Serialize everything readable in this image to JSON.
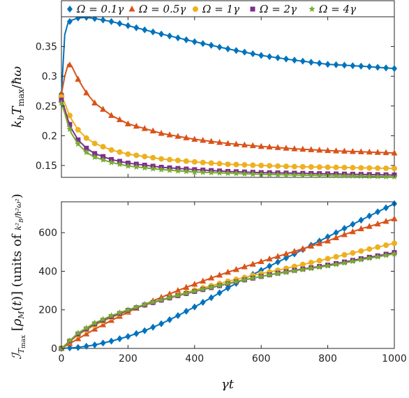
{
  "chart_data": [
    {
      "type": "line",
      "panel": "top",
      "ylabel": "k_b T_max / ħω",
      "xlabel": "",
      "xlim": [
        0,
        1000
      ],
      "ylim": [
        0.13,
        0.4
      ],
      "yticks": [
        0.15,
        0.2,
        0.25,
        0.3,
        0.35
      ],
      "ytick_labels": [
        "0.15",
        "0.2",
        "0.25",
        "0.3",
        "0.35"
      ],
      "grid": false,
      "legend": "top, horizontal",
      "series": [
        {
          "name": "Ω = 0.1γ",
          "color": "#0072BD",
          "marker": "diamond",
          "x": [
            0,
            10,
            20,
            30,
            50,
            75,
            100,
            150,
            200,
            300,
            400,
            500,
            600,
            700,
            800,
            900,
            1000
          ],
          "y": [
            0.27,
            0.37,
            0.39,
            0.394,
            0.398,
            0.399,
            0.397,
            0.392,
            0.385,
            0.371,
            0.358,
            0.346,
            0.335,
            0.327,
            0.32,
            0.317,
            0.313
          ]
        },
        {
          "name": "Ω = 0.5γ",
          "color": "#D95319",
          "marker": "triangle",
          "x": [
            0,
            10,
            20,
            30,
            50,
            75,
            100,
            150,
            200,
            300,
            400,
            500,
            600,
            700,
            800,
            900,
            1000
          ],
          "y": [
            0.27,
            0.3,
            0.32,
            0.318,
            0.295,
            0.272,
            0.255,
            0.234,
            0.22,
            0.204,
            0.194,
            0.187,
            0.182,
            0.178,
            0.175,
            0.173,
            0.171
          ]
        },
        {
          "name": "Ω = 1γ",
          "color": "#EDB120",
          "marker": "circle",
          "x": [
            0,
            10,
            20,
            30,
            50,
            75,
            100,
            150,
            200,
            300,
            400,
            500,
            600,
            700,
            800,
            900,
            1000
          ],
          "y": [
            0.265,
            0.255,
            0.24,
            0.228,
            0.21,
            0.196,
            0.187,
            0.176,
            0.169,
            0.161,
            0.156,
            0.152,
            0.15,
            0.148,
            0.147,
            0.146,
            0.145
          ]
        },
        {
          "name": "Ω = 2γ",
          "color": "#7E2F8E",
          "marker": "square",
          "x": [
            0,
            10,
            20,
            30,
            50,
            75,
            100,
            150,
            200,
            300,
            400,
            500,
            600,
            700,
            800,
            900,
            1000
          ],
          "y": [
            0.26,
            0.245,
            0.226,
            0.212,
            0.193,
            0.179,
            0.17,
            0.16,
            0.154,
            0.147,
            0.143,
            0.14,
            0.138,
            0.137,
            0.136,
            0.135,
            0.134
          ]
        },
        {
          "name": "Ω = 4γ",
          "color": "#77AC30",
          "marker": "star",
          "x": [
            0,
            10,
            20,
            30,
            50,
            75,
            100,
            150,
            200,
            300,
            400,
            500,
            600,
            700,
            800,
            900,
            1000
          ],
          "y": [
            0.255,
            0.238,
            0.218,
            0.204,
            0.186,
            0.172,
            0.164,
            0.155,
            0.149,
            0.143,
            0.139,
            0.137,
            0.135,
            0.134,
            0.133,
            0.132,
            0.131
          ]
        }
      ]
    },
    {
      "type": "line",
      "panel": "bottom",
      "ylabel": "I_Tmax [ρ_M(t)]  (units of k_B²/ħ²ω²)",
      "xlabel": "γt",
      "xlim": [
        0,
        1000
      ],
      "ylim": [
        0,
        760
      ],
      "xticks": [
        0,
        200,
        400,
        600,
        800,
        1000
      ],
      "xtick_labels": [
        "0",
        "200",
        "400",
        "600",
        "800",
        "1000"
      ],
      "yticks": [
        0,
        200,
        400,
        600
      ],
      "ytick_labels": [
        "0",
        "200",
        "400",
        "600"
      ],
      "grid": false,
      "series": [
        {
          "name": "Ω = 0.1γ",
          "color": "#0072BD",
          "marker": "diamond",
          "x": [
            0,
            50,
            100,
            150,
            200,
            250,
            300,
            350,
            400,
            450,
            500,
            550,
            600,
            650,
            700,
            750,
            800,
            850,
            900,
            950,
            1000
          ],
          "y": [
            0,
            5,
            18,
            38,
            62,
            92,
            128,
            170,
            215,
            263,
            313,
            362,
            405,
            448,
            490,
            535,
            578,
            622,
            665,
            708,
            750
          ]
        },
        {
          "name": "Ω = 0.5γ",
          "color": "#D95319",
          "marker": "triangle",
          "x": [
            0,
            50,
            100,
            150,
            200,
            250,
            300,
            350,
            400,
            450,
            500,
            550,
            600,
            650,
            700,
            750,
            800,
            850,
            900,
            950,
            1000
          ],
          "y": [
            0,
            50,
            100,
            145,
            188,
            228,
            265,
            300,
            333,
            365,
            395,
            423,
            450,
            477,
            503,
            530,
            557,
            590,
            620,
            645,
            672
          ]
        },
        {
          "name": "Ω = 1γ",
          "color": "#EDB120",
          "marker": "circle",
          "x": [
            0,
            50,
            100,
            150,
            200,
            250,
            300,
            350,
            400,
            450,
            500,
            550,
            600,
            650,
            700,
            750,
            800,
            850,
            900,
            950,
            1000
          ],
          "y": [
            0,
            70,
            120,
            160,
            195,
            225,
            252,
            278,
            302,
            325,
            348,
            368,
            388,
            405,
            425,
            445,
            465,
            485,
            505,
            525,
            545
          ]
        },
        {
          "name": "Ω = 2γ",
          "color": "#7E2F8E",
          "marker": "square",
          "x": [
            0,
            50,
            100,
            150,
            200,
            250,
            300,
            350,
            400,
            450,
            500,
            550,
            600,
            650,
            700,
            750,
            800,
            850,
            900,
            950,
            1000
          ],
          "y": [
            0,
            75,
            127,
            165,
            197,
            225,
            250,
            273,
            295,
            315,
            335,
            355,
            373,
            390,
            405,
            418,
            432,
            448,
            465,
            480,
            497
          ]
        },
        {
          "name": "Ω = 4γ",
          "color": "#77AC30",
          "marker": "star",
          "x": [
            0,
            50,
            100,
            150,
            200,
            250,
            300,
            350,
            400,
            450,
            500,
            550,
            600,
            650,
            700,
            750,
            800,
            850,
            900,
            950,
            1000
          ],
          "y": [
            0,
            80,
            132,
            170,
            200,
            228,
            252,
            275,
            297,
            317,
            337,
            356,
            373,
            388,
            402,
            415,
            428,
            443,
            460,
            475,
            490
          ]
        }
      ]
    }
  ]
}
